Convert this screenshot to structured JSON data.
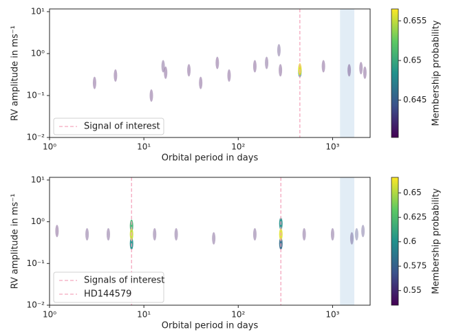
{
  "chart_data": [
    {
      "type": "scatter",
      "xlabel": "Orbital period in days",
      "ylabel": "RV amplitude in ms⁻¹",
      "xlog": true,
      "ylog": true,
      "xlim": [
        1,
        2500
      ],
      "ylim": [
        0.01,
        11.6
      ],
      "xticks": [
        {
          "value": 1,
          "label": "10⁰"
        },
        {
          "value": 10,
          "label": "10¹"
        },
        {
          "value": 100,
          "label": "10²"
        },
        {
          "value": 1000,
          "label": "10³"
        }
      ],
      "yticks": [
        {
          "value": 0.01,
          "label": "10⁻²"
        },
        {
          "value": 0.1,
          "label": "10⁻¹"
        },
        {
          "value": 1,
          "label": "10⁰"
        },
        {
          "value": 10,
          "label": "10¹"
        }
      ],
      "x": [
        3,
        5,
        12,
        16,
        17,
        30,
        40,
        60,
        80,
        150,
        200,
        270,
        280,
        450,
        450,
        800,
        1500,
        2000,
        2200
      ],
      "y": [
        0.2,
        0.3,
        0.1,
        0.5,
        0.35,
        0.4,
        0.2,
        0.6,
        0.3,
        0.5,
        0.6,
        1.2,
        0.4,
        0.42,
        0.38,
        0.5,
        0.4,
        0.45,
        0.35
      ],
      "c": [
        0.641,
        0.641,
        0.641,
        0.6415,
        0.641,
        0.641,
        0.641,
        0.641,
        0.641,
        0.641,
        0.6415,
        0.642,
        0.641,
        0.6562,
        0.648,
        0.641,
        0.641,
        0.641,
        0.641
      ],
      "clim": [
        0.6403,
        0.6565
      ],
      "cticks": [
        0.645,
        0.65,
        0.655
      ],
      "clabel": "Membership probability",
      "vlines": [
        450
      ],
      "vline_color": "#f4a6bd",
      "span": [
        1200,
        1700
      ],
      "span_color": "#dbe8f4",
      "legend": [
        "Signal of interest"
      ],
      "legend_loc": "lower left"
    },
    {
      "type": "scatter",
      "xlabel": "Orbital period in days",
      "ylabel": "RV amplitude in ms⁻¹",
      "xlog": true,
      "ylog": true,
      "xlim": [
        1,
        2500
      ],
      "ylim": [
        0.01,
        11.6
      ],
      "xticks": [
        {
          "value": 1,
          "label": "10⁰"
        },
        {
          "value": 10,
          "label": "10¹"
        },
        {
          "value": 100,
          "label": "10²"
        },
        {
          "value": 1000,
          "label": "10³"
        }
      ],
      "yticks": [
        {
          "value": 0.01,
          "label": "10⁻²"
        },
        {
          "value": 0.1,
          "label": "10⁻¹"
        },
        {
          "value": 1,
          "label": "10⁰"
        },
        {
          "value": 10,
          "label": "10¹"
        }
      ],
      "x": [
        1.2,
        2.5,
        4.2,
        7.4,
        7.4,
        7.4,
        13,
        22,
        55,
        150,
        283,
        283,
        283,
        500,
        1000,
        1600,
        1800,
        2100
      ],
      "y": [
        0.6,
        0.5,
        0.5,
        0.5,
        0.8,
        0.3,
        0.5,
        0.5,
        0.4,
        0.5,
        0.5,
        0.9,
        0.3,
        0.5,
        0.5,
        0.4,
        0.5,
        0.6
      ],
      "c": [
        0.54,
        0.545,
        0.545,
        0.655,
        0.62,
        0.6,
        0.545,
        0.545,
        0.545,
        0.545,
        0.66,
        0.6,
        0.58,
        0.545,
        0.545,
        0.55,
        0.56,
        0.555
      ],
      "clim": [
        0.535,
        0.666
      ],
      "cticks": [
        0.55,
        0.575,
        0.6,
        0.625,
        0.65
      ],
      "clabel": "Membership probability",
      "vlines": [
        7.4,
        283
      ],
      "vline_color": "#f4a6bd",
      "span": [
        1200,
        1700
      ],
      "span_color": "#dbe8f4",
      "legend": [
        "Signals of interest",
        "HD144579"
      ],
      "legend_loc": "lower left"
    }
  ]
}
